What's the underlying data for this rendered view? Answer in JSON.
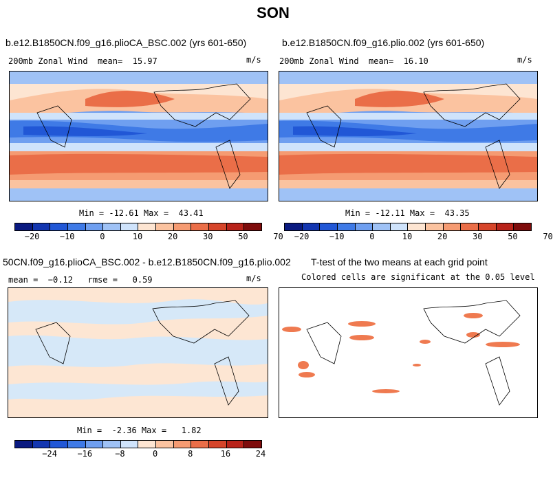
{
  "season": "SON",
  "colors": {
    "scale": [
      "#0a1a80",
      "#1336b0",
      "#2157d6",
      "#3f7ae6",
      "#6f9ff0",
      "#9fc2f6",
      "#cfe3fb",
      "#fde5d2",
      "#fbc3a0",
      "#f59b72",
      "#ea6e48",
      "#d6452a",
      "#b8231a",
      "#7e0c0c"
    ],
    "diff_fill": "#fde6d3",
    "diff_neg": "#d6e8f8",
    "sig": "#ef7a50"
  },
  "chart_data": [
    {
      "type": "heatmap",
      "title": "b.e12.B1850CN.f09_g16.plioCA_BSC.002 (yrs 601-650)",
      "variable": "200mb Zonal Wind  mean=  15.97",
      "units": "m/s",
      "min_max": "Min = -12.61 Max =  43.41",
      "colorbar_ticks": [
        "−20",
        "−10",
        "0",
        "10",
        "20",
        "30",
        "50",
        "70"
      ]
    },
    {
      "type": "heatmap",
      "title": "b.e12.B1850CN.f09_g16.plio.002 (yrs 601-650)",
      "variable": "200mb Zonal Wind  mean=  16.10",
      "units": "m/s",
      "min_max": "Min = -12.11 Max =  43.35",
      "colorbar_ticks": [
        "−20",
        "−10",
        "0",
        "10",
        "20",
        "30",
        "50",
        "70"
      ]
    },
    {
      "type": "heatmap",
      "title": "50CN.f09_g16.plioCA_BSC.002 - b.e12.B1850CN.f09_g16.plio.002",
      "stats": "mean =  −0.12   rmse =   0.59",
      "units": "m/s",
      "min_max": "Min =  -2.36 Max =   1.82",
      "colorbar_ticks": [
        "−24",
        "−16",
        "−8",
        "0",
        "8",
        "16",
        "24"
      ]
    },
    {
      "type": "heatmap",
      "title": "T-test of the two means at each grid point",
      "subtitle": "Colored cells are significant at the 0.05 level"
    }
  ]
}
